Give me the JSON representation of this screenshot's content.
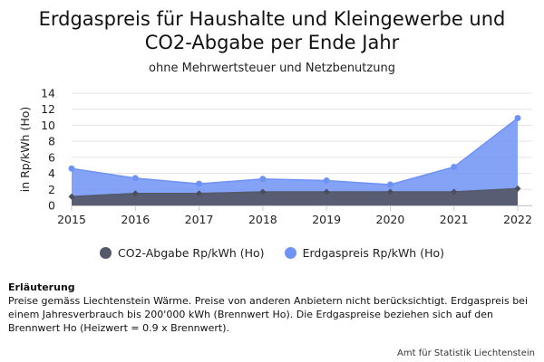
{
  "chart_data": {
    "type": "area",
    "title": [
      "Erdgaspreis für Haushalte und Kleingewerbe und",
      "CO2-Abgabe per Ende Jahr"
    ],
    "subtitle": "ohne Mehrwertsteuer und Netzbenutzung",
    "ylabel": "in Rp/kWh (Ho)",
    "xlabel": "",
    "x": [
      "2015",
      "2016",
      "2017",
      "2018",
      "2019",
      "2020",
      "2021",
      "2022"
    ],
    "ylim": [
      0,
      14
    ],
    "yticks": [
      0,
      2,
      4,
      6,
      8,
      10,
      12,
      14
    ],
    "grid": true,
    "legend": "bottom",
    "series": [
      {
        "name": "CO2-Abgabe Rp/kWh (Ho)",
        "color": "#555a6b",
        "marker": "diamond",
        "values": [
          1.1,
          1.5,
          1.5,
          1.7,
          1.7,
          1.7,
          1.7,
          2.1
        ]
      },
      {
        "name": "Erdgaspreis Rp/kWh (Ho)",
        "color": "#6f93f5",
        "marker": "circle",
        "values": [
          4.6,
          3.4,
          2.7,
          3.3,
          3.1,
          2.6,
          4.8,
          10.9
        ]
      }
    ]
  },
  "legend_items": [
    {
      "label": "CO2-Abgabe Rp/kWh (Ho)",
      "color": "#555a6b"
    },
    {
      "label": "Erdgaspreis Rp/kWh (Ho)",
      "color": "#6f93f5"
    }
  ],
  "note": {
    "heading": "Erläuterung",
    "body": "Preise gemäss Liechtenstein Wärme. Preise von anderen Anbietern nicht berücksichtigt. Erdgaspreis bei einem Jahresverbrauch bis 200'000 kWh (Brennwert Ho). Die Erdgaspreise beziehen sich auf den Brennwert Ho (Heizwert = 0.9 x Brennwert)."
  },
  "source": "Amt für Statistik Liechtenstein"
}
